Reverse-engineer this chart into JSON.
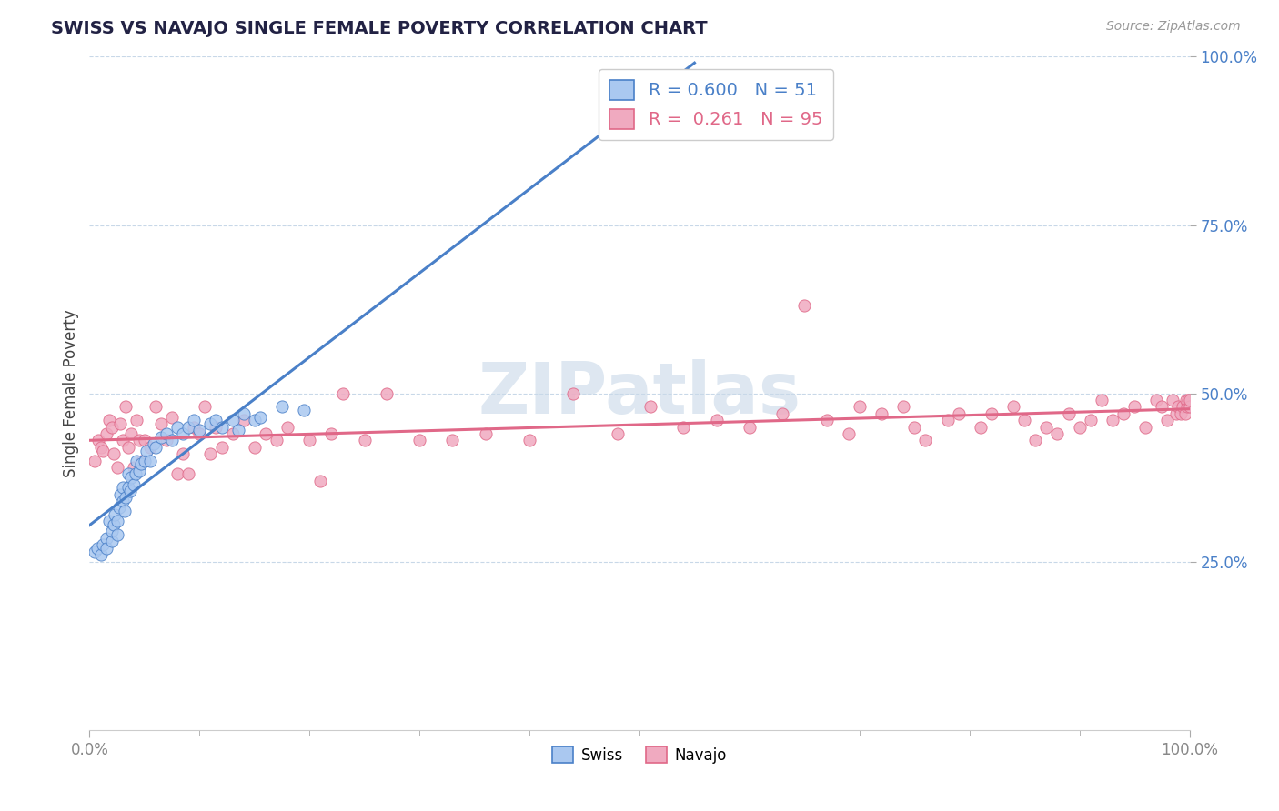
{
  "title": "SWISS VS NAVAJO SINGLE FEMALE POVERTY CORRELATION CHART",
  "source": "Source: ZipAtlas.com",
  "ylabel": "Single Female Poverty",
  "watermark": "ZIPatlas",
  "legend_swiss_r": "R = 0.600",
  "legend_swiss_n": "N = 51",
  "legend_navajo_r": "R =  0.261",
  "legend_navajo_n": "N = 95",
  "swiss_color": "#aac8f0",
  "navajo_color": "#f0aac0",
  "swiss_line_color": "#4a80c8",
  "navajo_line_color": "#e06888",
  "bg_color": "#ffffff",
  "grid_color": "#c8d8e8",
  "tick_color_y": "#4a80c8",
  "tick_color_x": "#888888",
  "title_color": "#222244",
  "source_color": "#999999",
  "watermark_color": "#c8d8e8",
  "swiss_scatter_x": [
    0.005,
    0.007,
    0.01,
    0.012,
    0.015,
    0.015,
    0.018,
    0.02,
    0.02,
    0.022,
    0.023,
    0.025,
    0.025,
    0.027,
    0.028,
    0.03,
    0.03,
    0.032,
    0.033,
    0.035,
    0.035,
    0.037,
    0.038,
    0.04,
    0.042,
    0.043,
    0.045,
    0.047,
    0.05,
    0.052,
    0.055,
    0.058,
    0.06,
    0.065,
    0.07,
    0.075,
    0.08,
    0.085,
    0.09,
    0.095,
    0.1,
    0.11,
    0.115,
    0.12,
    0.13,
    0.135,
    0.14,
    0.15,
    0.155,
    0.175,
    0.195
  ],
  "swiss_scatter_y": [
    0.265,
    0.27,
    0.26,
    0.275,
    0.285,
    0.27,
    0.31,
    0.28,
    0.295,
    0.305,
    0.32,
    0.31,
    0.29,
    0.33,
    0.35,
    0.34,
    0.36,
    0.325,
    0.345,
    0.36,
    0.38,
    0.355,
    0.375,
    0.365,
    0.38,
    0.4,
    0.385,
    0.395,
    0.4,
    0.415,
    0.4,
    0.425,
    0.42,
    0.435,
    0.44,
    0.43,
    0.45,
    0.44,
    0.45,
    0.46,
    0.445,
    0.455,
    0.46,
    0.45,
    0.46,
    0.445,
    0.47,
    0.46,
    0.465,
    0.48,
    0.475
  ],
  "navajo_scatter_x": [
    0.005,
    0.008,
    0.01,
    0.012,
    0.015,
    0.018,
    0.02,
    0.022,
    0.025,
    0.028,
    0.03,
    0.033,
    0.035,
    0.038,
    0.04,
    0.043,
    0.045,
    0.048,
    0.05,
    0.055,
    0.06,
    0.065,
    0.07,
    0.075,
    0.08,
    0.085,
    0.09,
    0.095,
    0.1,
    0.105,
    0.11,
    0.115,
    0.12,
    0.13,
    0.14,
    0.15,
    0.16,
    0.17,
    0.18,
    0.2,
    0.21,
    0.22,
    0.23,
    0.25,
    0.27,
    0.3,
    0.33,
    0.36,
    0.4,
    0.44,
    0.48,
    0.51,
    0.54,
    0.57,
    0.6,
    0.63,
    0.65,
    0.67,
    0.69,
    0.7,
    0.72,
    0.74,
    0.75,
    0.76,
    0.78,
    0.79,
    0.81,
    0.82,
    0.84,
    0.85,
    0.86,
    0.87,
    0.88,
    0.89,
    0.9,
    0.91,
    0.92,
    0.93,
    0.94,
    0.95,
    0.96,
    0.97,
    0.975,
    0.98,
    0.985,
    0.988,
    0.99,
    0.992,
    0.994,
    0.996,
    0.997,
    0.998,
    0.999,
    1.0,
    1.0
  ],
  "navajo_scatter_y": [
    0.4,
    0.43,
    0.42,
    0.415,
    0.44,
    0.46,
    0.45,
    0.41,
    0.39,
    0.455,
    0.43,
    0.48,
    0.42,
    0.44,
    0.39,
    0.46,
    0.43,
    0.4,
    0.43,
    0.42,
    0.48,
    0.455,
    0.43,
    0.465,
    0.38,
    0.41,
    0.38,
    0.45,
    0.44,
    0.48,
    0.41,
    0.45,
    0.42,
    0.44,
    0.46,
    0.42,
    0.44,
    0.43,
    0.45,
    0.43,
    0.37,
    0.44,
    0.5,
    0.43,
    0.5,
    0.43,
    0.43,
    0.44,
    0.43,
    0.5,
    0.44,
    0.48,
    0.45,
    0.46,
    0.45,
    0.47,
    0.63,
    0.46,
    0.44,
    0.48,
    0.47,
    0.48,
    0.45,
    0.43,
    0.46,
    0.47,
    0.45,
    0.47,
    0.48,
    0.46,
    0.43,
    0.45,
    0.44,
    0.47,
    0.45,
    0.46,
    0.49,
    0.46,
    0.47,
    0.48,
    0.45,
    0.49,
    0.48,
    0.46,
    0.49,
    0.47,
    0.48,
    0.47,
    0.48,
    0.47,
    0.49,
    0.48,
    0.49,
    0.48,
    0.49
  ]
}
